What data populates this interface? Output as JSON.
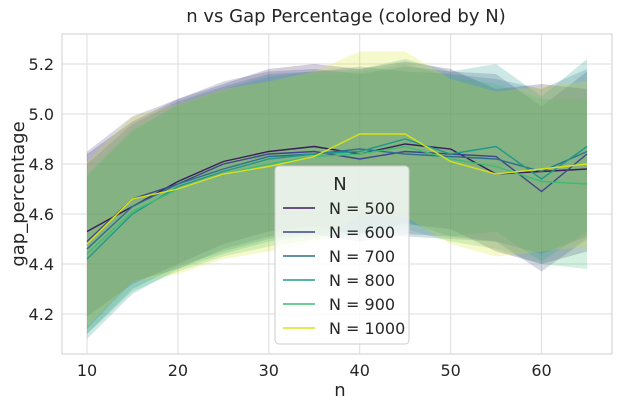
{
  "chart_data": {
    "type": "line",
    "title": "n vs Gap Percentage (colored by N)",
    "xlabel": "n",
    "ylabel": "gap_percentage",
    "xlim": [
      7.25,
      67.75
    ],
    "ylim": [
      4.04,
      5.32
    ],
    "xticks": [
      10,
      20,
      30,
      40,
      50,
      60
    ],
    "yticks": [
      4.2,
      4.4,
      4.6,
      4.8,
      5.0,
      5.2
    ],
    "grid": true,
    "legend": {
      "title": "N",
      "placement": "lower-center"
    },
    "x": [
      10,
      15,
      20,
      25,
      30,
      35,
      40,
      45,
      50,
      55,
      60,
      65
    ],
    "series": [
      {
        "name": "N = 500",
        "color": "#3b1c5a",
        "values": [
          4.53,
          4.63,
          4.73,
          4.81,
          4.85,
          4.87,
          4.84,
          4.88,
          4.86,
          4.76,
          4.77,
          4.78
        ],
        "lower": [
          4.19,
          4.32,
          4.4,
          4.48,
          4.53,
          4.55,
          4.52,
          4.56,
          4.54,
          4.45,
          4.4,
          4.45
        ],
        "upper": [
          4.84,
          4.97,
          5.06,
          5.12,
          5.18,
          5.2,
          5.18,
          5.21,
          5.18,
          5.1,
          5.12,
          5.1
        ]
      },
      {
        "name": "N = 600",
        "color": "#3f4788",
        "values": [
          4.49,
          4.66,
          4.72,
          4.8,
          4.84,
          4.85,
          4.82,
          4.85,
          4.84,
          4.83,
          4.69,
          4.84
        ],
        "lower": [
          4.14,
          4.33,
          4.38,
          4.46,
          4.51,
          4.52,
          4.49,
          4.52,
          4.51,
          4.49,
          4.37,
          4.5
        ],
        "upper": [
          4.85,
          4.99,
          5.06,
          5.13,
          5.17,
          5.18,
          5.16,
          5.19,
          5.17,
          5.16,
          5.03,
          5.17
        ]
      },
      {
        "name": "N = 700",
        "color": "#2e6f8e",
        "values": [
          4.46,
          4.63,
          4.72,
          4.78,
          4.83,
          4.84,
          4.86,
          4.84,
          4.83,
          4.82,
          4.77,
          4.85
        ],
        "lower": [
          4.12,
          4.3,
          4.39,
          4.45,
          4.5,
          4.52,
          4.53,
          4.51,
          4.5,
          4.49,
          4.44,
          4.51
        ],
        "upper": [
          4.8,
          4.96,
          5.05,
          5.11,
          5.16,
          5.17,
          5.19,
          5.17,
          5.16,
          5.14,
          5.1,
          5.18
        ]
      },
      {
        "name": "N = 800",
        "color": "#1f9a8a",
        "values": [
          4.42,
          4.6,
          4.71,
          4.77,
          4.82,
          4.84,
          4.85,
          4.9,
          4.84,
          4.87,
          4.74,
          4.87
        ],
        "lower": [
          4.1,
          4.28,
          4.38,
          4.44,
          4.49,
          4.51,
          4.52,
          4.57,
          4.51,
          4.53,
          4.41,
          4.53
        ],
        "upper": [
          4.75,
          4.93,
          5.04,
          5.1,
          5.15,
          5.17,
          5.18,
          5.22,
          5.17,
          5.2,
          5.07,
          5.22
        ]
      },
      {
        "name": "N = 900",
        "color": "#3dbc74",
        "values": [
          4.44,
          4.61,
          4.7,
          4.76,
          4.8,
          4.83,
          4.84,
          4.87,
          4.82,
          4.79,
          4.73,
          4.72
        ],
        "lower": [
          4.12,
          4.29,
          4.37,
          4.43,
          4.47,
          4.5,
          4.51,
          4.54,
          4.49,
          4.46,
          4.4,
          4.38
        ],
        "upper": [
          4.76,
          4.94,
          5.03,
          5.09,
          5.13,
          5.16,
          5.17,
          5.2,
          5.15,
          5.12,
          5.06,
          5.06
        ]
      },
      {
        "name": "N = 1000",
        "color": "#d8e219",
        "values": [
          4.48,
          4.66,
          4.7,
          4.76,
          4.79,
          4.83,
          4.92,
          4.92,
          4.81,
          4.76,
          4.78,
          4.8
        ],
        "lower": [
          4.15,
          4.33,
          4.36,
          4.42,
          4.45,
          4.49,
          4.59,
          4.59,
          4.48,
          4.43,
          4.45,
          4.47
        ],
        "upper": [
          4.81,
          4.99,
          5.04,
          5.1,
          5.13,
          5.17,
          5.25,
          5.25,
          5.14,
          5.09,
          5.11,
          5.13
        ]
      }
    ]
  }
}
